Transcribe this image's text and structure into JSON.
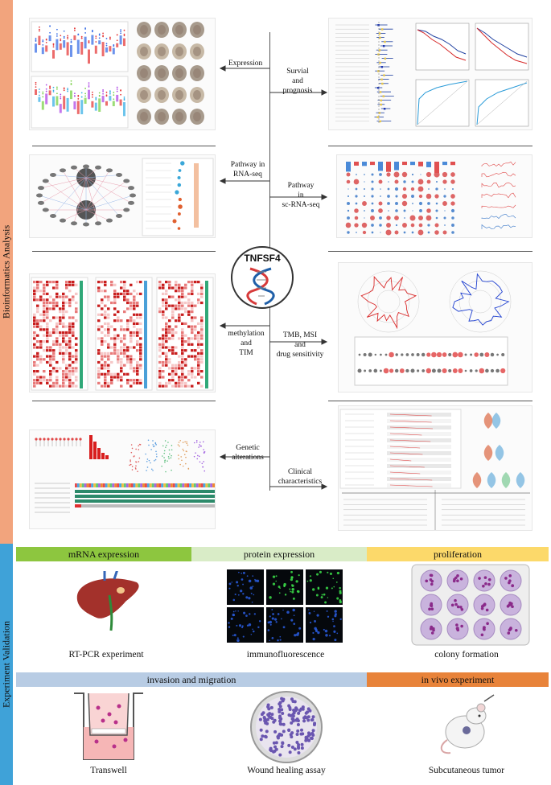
{
  "side_labels": {
    "top": "Bioinformatics Analysis",
    "bottom": "Experiment Validation"
  },
  "center": {
    "title": "TNFSF4"
  },
  "analysis_labels": {
    "expression": "Expression",
    "survival": "Survial\nand\nprognosis",
    "pathway_rna": "Pathway in\nRNA-seq",
    "pathway_sc": "Pathway\nin\nsc-RNA-seq",
    "methylation": "methylation\nand\nTIM",
    "tmb": "TMB, MSI\nand\ndrug sensitivity",
    "genetic": "Genetic\nalterations",
    "clinical": "Clinical\ncharacteristics"
  },
  "sections": {
    "mrna": "mRNA expression",
    "protein": "protein expression",
    "proliferation": "proliferation",
    "invasion": "invasion and migration",
    "invivo": "in vivo experiment"
  },
  "experiments": {
    "rtpcr": "RT-PCR experiment",
    "if": "immunofluorescence",
    "colony": "colony formation",
    "transwell": "Transwell",
    "wound": "Wound healing assay",
    "tumor": "Subcutaneous tumor"
  },
  "colors": {
    "top_band": "#f2a47d",
    "bottom_band": "#3fa2d8",
    "mrna_bar": "#8dc63f",
    "protein_bar": "#d9ecc7",
    "proliferation_bar": "#fcd96a",
    "invasion_bar": "#b8cce4",
    "invivo_bar": "#e8833a"
  }
}
